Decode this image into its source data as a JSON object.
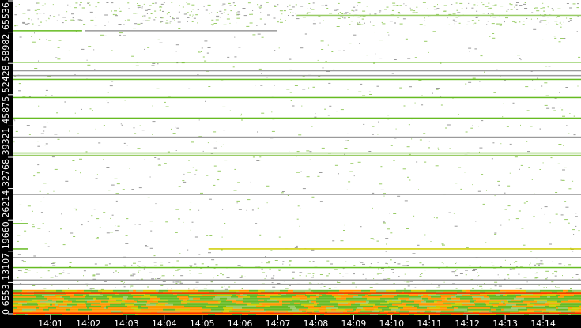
{
  "chart_data": {
    "type": "heatmap",
    "title": "",
    "xlabel": "",
    "ylabel": "",
    "xlim": [
      "14:00:00",
      "14:15:00"
    ],
    "ylim": [
      0,
      65536
    ],
    "grid": false,
    "legend": "none",
    "x_ticks": [
      "14:01",
      "14:02",
      "14:03",
      "14:04",
      "14:05",
      "14:06",
      "14:07",
      "14:08",
      "14:09",
      "14:10",
      "14:11",
      "14:12",
      "14:13",
      "14:14"
    ],
    "y_ticks": [
      {
        "value": 0,
        "label": "0"
      },
      {
        "value": 6553,
        "label": "6553"
      },
      {
        "value": 13107,
        "label": "13107"
      },
      {
        "value": 19660,
        "label": "19660"
      },
      {
        "value": 26214,
        "label": "26214"
      },
      {
        "value": 32768,
        "label": "32768"
      },
      {
        "value": 39321,
        "label": "39321"
      },
      {
        "value": 45875,
        "label": "45875"
      },
      {
        "value": 52428,
        "label": "52428"
      },
      {
        "value": 58982,
        "label": "58982"
      },
      {
        "value": 65536,
        "label": "65536"
      }
    ],
    "colors": {
      "low": "#99cc66",
      "mid": "#66bb22",
      "gray": "#9a9a9a",
      "high": "#cccc00",
      "higher": "#ff9900",
      "max": "#ff2a00",
      "background": "#ffffff",
      "axis": "#000000"
    },
    "persistent_bands": [
      {
        "port": 59400,
        "start": "14:00:00",
        "end": "14:01:50",
        "level": "mid"
      },
      {
        "port": 59400,
        "start": "14:01:55",
        "end": "14:06:58",
        "level": "gray"
      },
      {
        "port": 62600,
        "start": "14:07:30",
        "end": "14:15:00",
        "level": "low"
      },
      {
        "port": 52800,
        "start": "14:00:00",
        "end": "14:15:00",
        "level": "mid"
      },
      {
        "port": 51000,
        "start": "14:00:00",
        "end": "14:15:00",
        "level": "gray"
      },
      {
        "port": 50000,
        "start": "14:00:00",
        "end": "14:15:00",
        "level": "gray"
      },
      {
        "port": 49200,
        "start": "14:00:00",
        "end": "14:15:00",
        "level": "mid"
      },
      {
        "port": 45400,
        "start": "14:00:00",
        "end": "14:15:00",
        "level": "mid"
      },
      {
        "port": 41100,
        "start": "14:00:00",
        "end": "14:15:00",
        "level": "mid"
      },
      {
        "port": 37100,
        "start": "14:00:00",
        "end": "14:15:00",
        "level": "gray"
      },
      {
        "port": 33800,
        "start": "14:00:00",
        "end": "14:15:00",
        "level": "mid"
      },
      {
        "port": 33300,
        "start": "14:00:00",
        "end": "14:15:00",
        "level": "low"
      },
      {
        "port": 25100,
        "start": "14:00:00",
        "end": "14:15:00",
        "level": "gray"
      },
      {
        "port": 19000,
        "start": "14:00:00",
        "end": "14:00:25",
        "level": "mid"
      },
      {
        "port": 13700,
        "start": "14:00:00",
        "end": "14:00:25",
        "level": "mid"
      },
      {
        "port": 13700,
        "start": "14:05:10",
        "end": "14:15:00",
        "level": "high"
      },
      {
        "port": 11900,
        "start": "14:00:00",
        "end": "14:15:00",
        "level": "gray"
      },
      {
        "port": 9800,
        "start": "14:00:00",
        "end": "14:15:00",
        "level": "mid"
      },
      {
        "port": 7200,
        "start": "14:00:00",
        "end": "14:15:00",
        "level": "gray"
      },
      {
        "port": 6300,
        "start": "14:00:00",
        "end": "14:15:00",
        "level": "gray"
      }
    ],
    "dense_region": {
      "port_min": 0,
      "port_max": 5000,
      "dominant_levels": [
        "mid",
        "high",
        "higher"
      ]
    },
    "hot_lines": [
      {
        "port": 4400,
        "level": "max"
      },
      {
        "port": 250,
        "level": "max"
      }
    ]
  }
}
